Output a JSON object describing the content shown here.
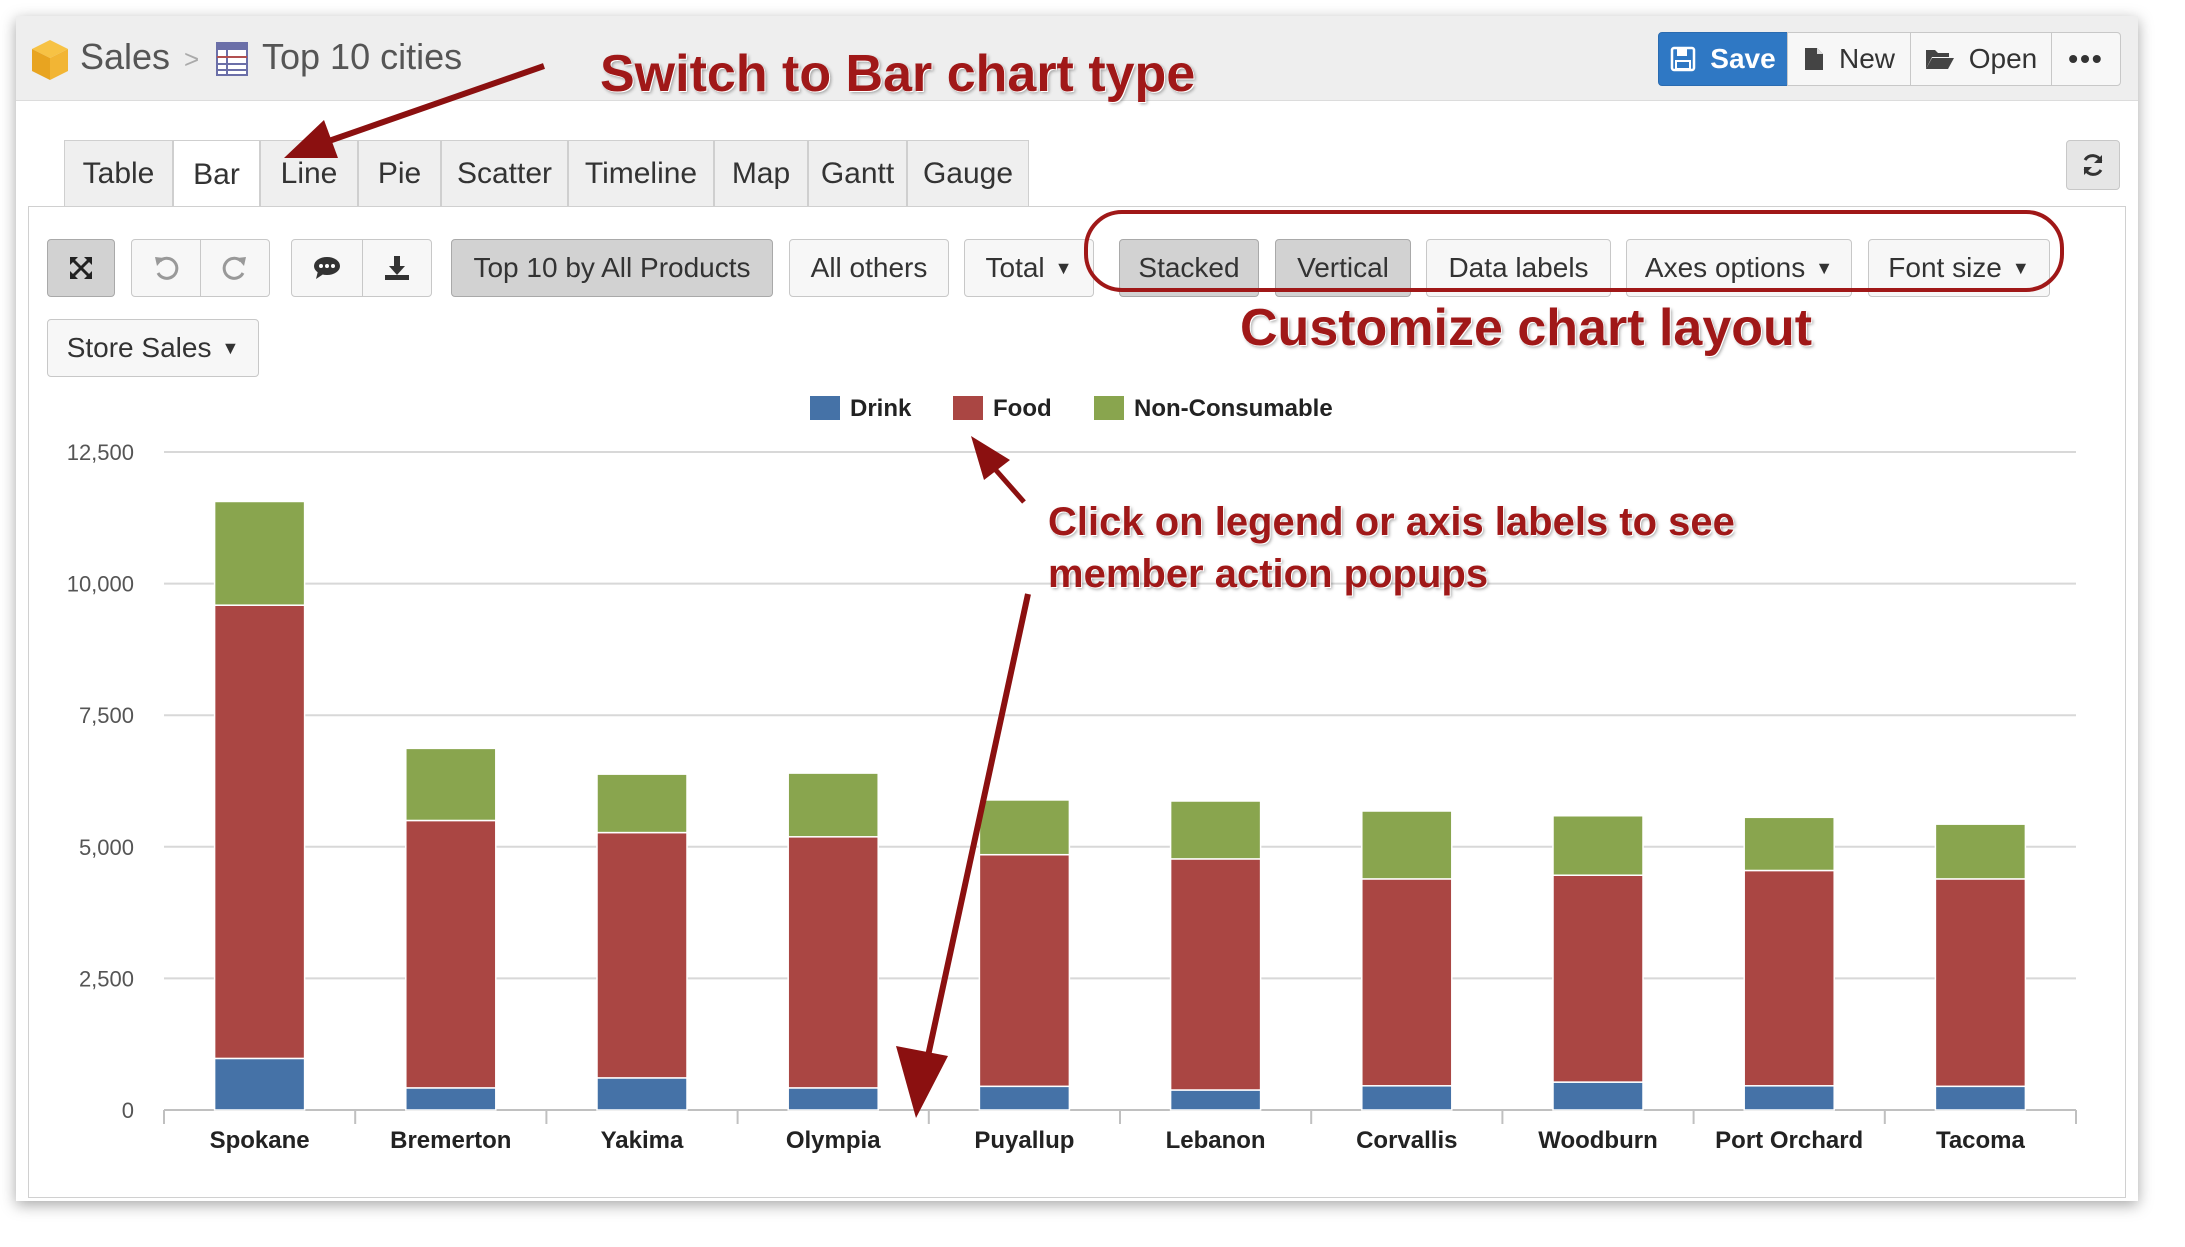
{
  "breadcrumb": {
    "root": "Sales",
    "separator": ">",
    "report": "Top 10 cities"
  },
  "toolbar": {
    "save_label": "Save",
    "new_label": "New",
    "open_label": "Open",
    "more_label": "•••"
  },
  "tabs": [
    "Table",
    "Bar",
    "Line",
    "Pie",
    "Scatter",
    "Timeline",
    "Map",
    "Gantt",
    "Gauge"
  ],
  "active_tab": "Bar",
  "options": {
    "top_filter": "Top 10 by All Products",
    "others": "All others",
    "total": "Total",
    "stacked": "Stacked",
    "vertical": "Vertical",
    "data_labels": "Data labels",
    "axes_options": "Axes options",
    "font_size": "Font size",
    "measure": "Store Sales"
  },
  "annotations": {
    "switch": "Switch to Bar chart type",
    "customize": "Customize chart layout",
    "legend_hint_1": "Click on legend or axis labels to see",
    "legend_hint_2": "member action popups"
  },
  "colors": {
    "Drink": "#4572a7",
    "Food": "#aa4643",
    "Non-Consumable": "#89a54e",
    "annotation": "#a01818",
    "save": "#2f78c4"
  },
  "chart_data": {
    "type": "bar",
    "stacked": true,
    "categories": [
      "Spokane",
      "Bremerton",
      "Yakima",
      "Olympia",
      "Puyallup",
      "Lebanon",
      "Corvallis",
      "Woodburn",
      "Port Orchard",
      "Tacoma"
    ],
    "series": [
      {
        "name": "Drink",
        "values": [
          980,
          420,
          610,
          420,
          450,
          380,
          460,
          530,
          460,
          450
        ]
      },
      {
        "name": "Food",
        "values": [
          8610,
          5080,
          4660,
          4770,
          4400,
          4390,
          3930,
          3930,
          4090,
          3940
        ]
      },
      {
        "name": "Non-Consumable",
        "values": [
          1970,
          1370,
          1110,
          1210,
          1040,
          1100,
          1290,
          1130,
          1010,
          1040
        ]
      }
    ],
    "ylim": [
      0,
      12500
    ],
    "yticks": [
      "0",
      "2,500",
      "5,000",
      "7,500",
      "10,000",
      "12,500"
    ],
    "legend": "top-center",
    "grid": true
  }
}
